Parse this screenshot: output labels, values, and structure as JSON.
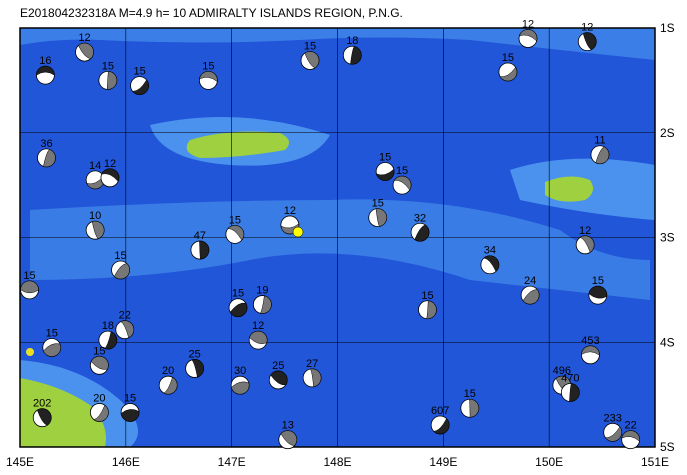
{
  "header": {
    "title": "E201804232318A  M=4.9  h= 10  ADMIRALTY ISLANDS REGION, P.N.G."
  },
  "map": {
    "lon_range": [
      145,
      151
    ],
    "lat_range": [
      1,
      5
    ],
    "lon_ticks": [
      {
        "value": 145,
        "label": "145E"
      },
      {
        "value": 146,
        "label": "146E"
      },
      {
        "value": 147,
        "label": "147E"
      },
      {
        "value": 148,
        "label": "148E"
      },
      {
        "value": 149,
        "label": "149E"
      },
      {
        "value": 150,
        "label": "150E"
      },
      {
        "value": 151,
        "label": "151E"
      }
    ],
    "lat_ticks": [
      {
        "value": 1,
        "label": "1S"
      },
      {
        "value": 2,
        "label": "2S"
      },
      {
        "value": 3,
        "label": "3S"
      },
      {
        "value": 4,
        "label": "4S"
      },
      {
        "value": 5,
        "label": "5S"
      }
    ]
  },
  "events": [
    {
      "label": "16",
      "lon": 145.24,
      "lat": 1.45
    },
    {
      "label": "12",
      "lon": 145.61,
      "lat": 1.23
    },
    {
      "label": "15",
      "lon": 145.83,
      "lat": 1.5
    },
    {
      "label": "15",
      "lon": 146.13,
      "lat": 1.55
    },
    {
      "label": "15",
      "lon": 146.78,
      "lat": 1.5
    },
    {
      "label": "15",
      "lon": 147.74,
      "lat": 1.31
    },
    {
      "label": "18",
      "lon": 148.14,
      "lat": 1.26
    },
    {
      "label": "15",
      "lon": 149.61,
      "lat": 1.42
    },
    {
      "label": "12",
      "lon": 149.8,
      "lat": 1.1
    },
    {
      "label": "12",
      "lon": 150.36,
      "lat": 1.13
    },
    {
      "label": "36",
      "lon": 145.25,
      "lat": 2.24
    },
    {
      "label": "14",
      "lon": 145.71,
      "lat": 2.45
    },
    {
      "label": "12",
      "lon": 145.85,
      "lat": 2.43
    },
    {
      "label": "10",
      "lon": 145.71,
      "lat": 2.93
    },
    {
      "label": "11",
      "lon": 150.48,
      "lat": 2.21
    },
    {
      "label": "15",
      "lon": 148.45,
      "lat": 2.37
    },
    {
      "label": "15",
      "lon": 148.61,
      "lat": 2.5
    },
    {
      "label": "15",
      "lon": 148.38,
      "lat": 2.81
    },
    {
      "label": "32",
      "lon": 148.78,
      "lat": 2.95
    },
    {
      "label": "12",
      "lon": 147.55,
      "lat": 2.88
    },
    {
      "label": "15",
      "lon": 147.03,
      "lat": 2.97
    },
    {
      "label": "47",
      "lon": 146.7,
      "lat": 3.12
    },
    {
      "label": "15",
      "lon": 145.95,
      "lat": 3.31
    },
    {
      "label": "15",
      "lon": 145.09,
      "lat": 3.5
    },
    {
      "label": "34",
      "lon": 149.44,
      "lat": 3.26
    },
    {
      "label": "15",
      "lon": 148.85,
      "lat": 3.69
    },
    {
      "label": "24",
      "lon": 149.82,
      "lat": 3.55
    },
    {
      "label": "15",
      "lon": 150.46,
      "lat": 3.55
    },
    {
      "label": "12",
      "lon": 150.34,
      "lat": 3.07
    },
    {
      "label": "19",
      "lon": 147.29,
      "lat": 3.64
    },
    {
      "label": "15",
      "lon": 147.06,
      "lat": 3.67
    },
    {
      "label": "12",
      "lon": 147.25,
      "lat": 3.98
    },
    {
      "label": "22",
      "lon": 145.99,
      "lat": 3.88
    },
    {
      "label": "18",
      "lon": 145.83,
      "lat": 3.98
    },
    {
      "label": "15",
      "lon": 145.3,
      "lat": 4.05
    },
    {
      "label": "15",
      "lon": 145.75,
      "lat": 4.22
    },
    {
      "label": "25",
      "lon": 146.65,
      "lat": 4.25
    },
    {
      "label": "20",
      "lon": 146.4,
      "lat": 4.41
    },
    {
      "label": "30",
      "lon": 147.08,
      "lat": 4.41
    },
    {
      "label": "25",
      "lon": 147.44,
      "lat": 4.36
    },
    {
      "label": "27",
      "lon": 147.76,
      "lat": 4.34
    },
    {
      "label": "20",
      "lon": 145.75,
      "lat": 4.67
    },
    {
      "label": "15",
      "lon": 146.04,
      "lat": 4.67
    },
    {
      "label": "13",
      "lon": 147.53,
      "lat": 4.93
    },
    {
      "label": "15",
      "lon": 149.25,
      "lat": 4.63
    },
    {
      "label": "607",
      "lon": 148.97,
      "lat": 4.79
    },
    {
      "label": "453",
      "lon": 150.39,
      "lat": 4.12
    },
    {
      "label": "496",
      "lon": 150.12,
      "lat": 4.41
    },
    {
      "label": "470",
      "lon": 150.2,
      "lat": 4.48
    },
    {
      "label": "233",
      "lon": 150.6,
      "lat": 4.86
    },
    {
      "label": "22",
      "lon": 150.77,
      "lat": 4.93
    },
    {
      "label": "202",
      "lon": 145.21,
      "lat": 4.72
    }
  ]
}
